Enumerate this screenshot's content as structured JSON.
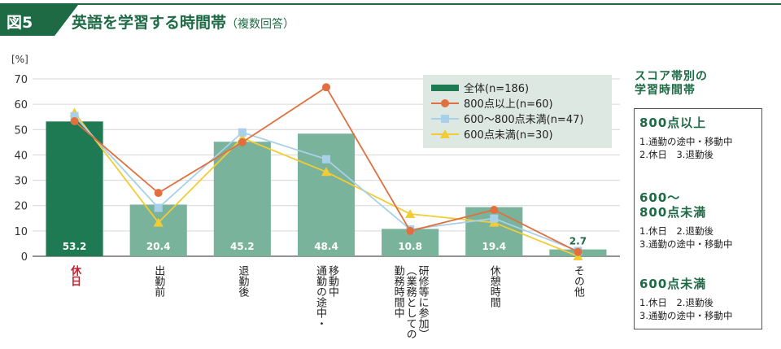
{
  "header": {
    "figure_label": "図5",
    "title": "英語を学習する時間帯",
    "subtitle": "（複数回答）"
  },
  "chart_data": {
    "type": "bar",
    "unit_label": "[%]",
    "ylim": [
      0,
      70
    ],
    "yticks": [
      0,
      10,
      20,
      30,
      40,
      50,
      60,
      70
    ],
    "grid": true,
    "categories": [
      "休日",
      "出勤前",
      "退勤後",
      "通勤の途中・移動中",
      "勤務時間中（業務としての研修等に参加）",
      "休憩時間",
      "その他"
    ],
    "category_lines": [
      [
        "休日"
      ],
      [
        "出勤前"
      ],
      [
        "退勤後"
      ],
      [
        "通勤の途中・",
        "移動中"
      ],
      [
        "勤務時間中",
        "（業務としての",
        "研修等に参加）"
      ],
      [
        "休憩時間"
      ],
      [
        "その他"
      ]
    ],
    "highlight_category": "休日",
    "series": [
      {
        "name": "全体(n=186)",
        "kind": "bar",
        "values": [
          53.2,
          20.4,
          45.2,
          48.4,
          10.8,
          19.4,
          2.7
        ]
      },
      {
        "name": "800点以上(n=60)",
        "kind": "line",
        "marker": "circle",
        "values": [
          53.3,
          25.0,
          45.0,
          66.7,
          10.0,
          18.3,
          1.7
        ]
      },
      {
        "name": "600〜800点未満(n=47)",
        "kind": "line",
        "marker": "square",
        "values": [
          55.3,
          19.1,
          48.9,
          38.3,
          10.6,
          14.9,
          2.1
        ]
      },
      {
        "name": "600点未満(n=30)",
        "kind": "line",
        "marker": "triangle",
        "values": [
          56.7,
          13.3,
          46.7,
          33.3,
          16.7,
          13.3,
          0.0
        ]
      }
    ],
    "data_labels": [
      "53.2",
      "20.4",
      "45.2",
      "48.4",
      "10.8",
      "19.4",
      "2.7"
    ]
  },
  "colors": {
    "brand": "#1e6a45",
    "bar": "#7ab39b",
    "bar_highlight": "#1e7a52",
    "line_800": "#e07040",
    "line_600_800": "#a8d0e8",
    "line_600": "#f2cc35",
    "highlight_text": "#c8202e"
  },
  "side_panel": {
    "title_lines": [
      "スコア帯別の",
      "学習時間帯"
    ],
    "groups": [
      {
        "title_lines": [
          "800点以上"
        ],
        "lines": [
          "1.通勤の途中・移動中",
          "2.休日　3.退勤後"
        ]
      },
      {
        "title_lines": [
          "600〜",
          "800点未満"
        ],
        "lines": [
          "1.休日　2.退勤後",
          "3.通勤の途中・移動中"
        ]
      },
      {
        "title_lines": [
          "600点未満"
        ],
        "lines": [
          "1.休日　2.退勤後",
          "3.通勤の途中・移動中"
        ]
      }
    ]
  }
}
